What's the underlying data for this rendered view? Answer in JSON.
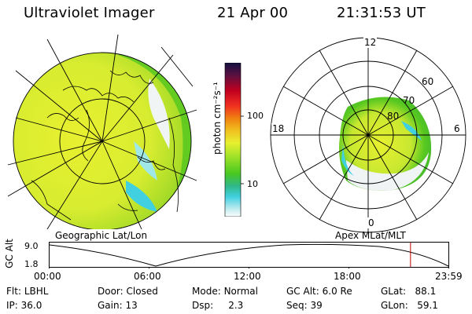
{
  "header": {
    "instrument": "Ultraviolet Imager",
    "date": "21 Apr 00",
    "time": "21:31:53 UT"
  },
  "colorbar": {
    "unit_label": "photon cm⁻²s⁻¹",
    "ticks": [
      "100",
      "10"
    ]
  },
  "left_panel": {
    "caption": "Geographic Lat/Lon"
  },
  "right_panel": {
    "caption": "Apex MLat/MLT",
    "mlt_labels": {
      "top": "12",
      "left": "18",
      "right": "6",
      "bottom": "0"
    },
    "lat_labels": [
      "60",
      "70",
      "80"
    ]
  },
  "timeline": {
    "ylabel": "GC Alt",
    "yticks": [
      "9.0",
      "1.8"
    ],
    "xticks": [
      "00:00",
      "06:00",
      "12:00",
      "18:00",
      "23:59"
    ],
    "marker_fraction": 0.905
  },
  "info": {
    "flt_label": "Flt:",
    "flt_value": "LBHL",
    "door_label": "Door:",
    "door_value": "Closed",
    "mode_label": "Mode:",
    "mode_value": "Normal",
    "gcalt_label": "GC Alt:",
    "gcalt_value": "6.0 Re",
    "glat_label": "GLat:",
    "glat_value": "88.1",
    "ip_label": "IP:",
    "ip_value": "36.0",
    "gain_label": "Gain:",
    "gain_value": "13",
    "dsp_label": "Dsp:",
    "dsp_value": "2.3",
    "seq_label": "Seq:",
    "seq_value": "39",
    "glon_label": "GLon:",
    "glon_value": "59.1"
  },
  "colors": {
    "yellow": "#e8f030",
    "green": "#58c820",
    "cyan": "#40d0e0",
    "white": "#f0f4f4",
    "marker": "#c00000"
  }
}
